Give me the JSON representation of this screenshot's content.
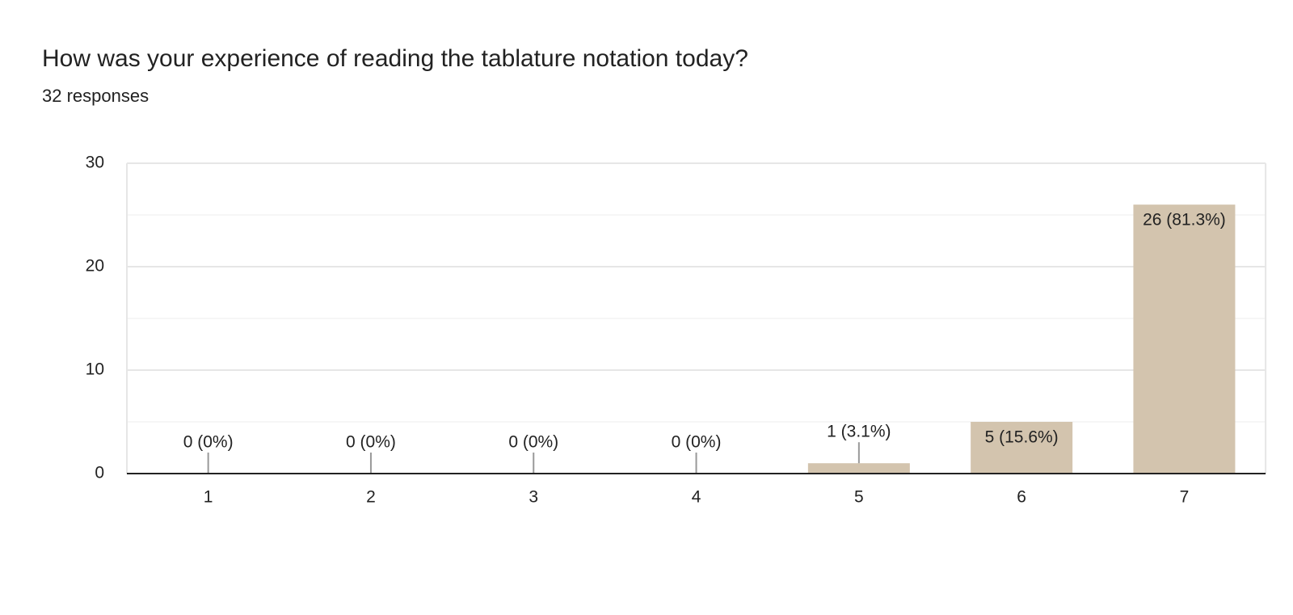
{
  "chart_data": {
    "type": "bar",
    "title": "How was your experience of reading the tablature notation today?",
    "subtitle": "32 responses",
    "categories": [
      "1",
      "2",
      "3",
      "4",
      "5",
      "6",
      "7"
    ],
    "values": [
      0,
      0,
      0,
      0,
      1,
      5,
      26
    ],
    "value_labels": [
      "0 (0%)",
      "0 (0%)",
      "0 (0%)",
      "0 (0%)",
      "1 (3.1%)",
      "5 (15.6%)",
      "26 (81.3%)"
    ],
    "color": "#d3c4ae",
    "ylim": [
      0,
      30
    ],
    "yticks": [
      0,
      10,
      20,
      30
    ],
    "minor_yticks": [
      5,
      15,
      25
    ],
    "grid": true
  }
}
